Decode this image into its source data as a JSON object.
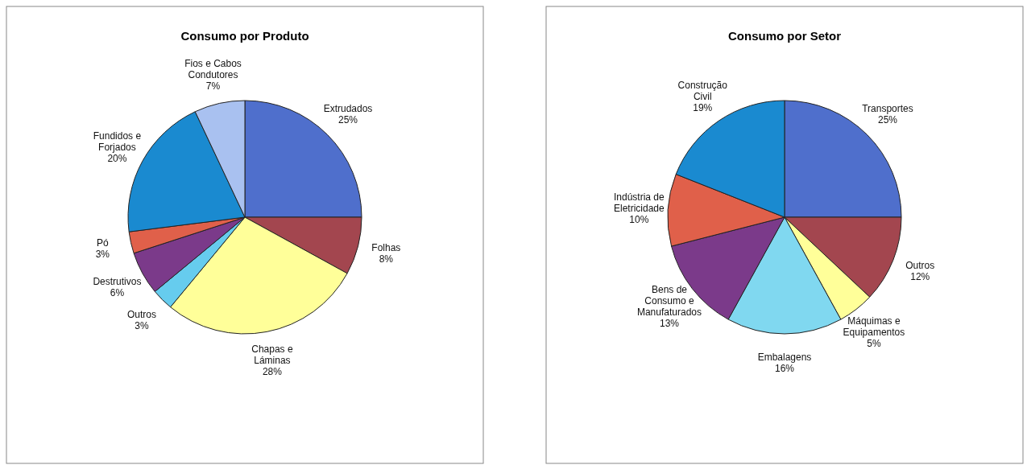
{
  "chart_data": [
    {
      "type": "pie",
      "title": "Consumo por Produto",
      "categories": [
        "Extrudados",
        "Folhas",
        "Chapas e Láminas",
        "Outros",
        "Destrutivos",
        "Pó",
        "Fundidos e Forjados",
        "Fios e Cabos Condutores"
      ],
      "values": [
        25,
        8,
        28,
        3,
        6,
        3,
        20,
        7
      ],
      "colors": [
        "#4f6fcc",
        "#a3464f",
        "#ffff99",
        "#66ccee",
        "#7b3a8a",
        "#e0604a",
        "#1a8ad0",
        "#a9c1f0"
      ],
      "value_labels": [
        "25%",
        "8%",
        "28%",
        "3%",
        "6%",
        "3%",
        "20%",
        "7%"
      ],
      "legend": false
    },
    {
      "type": "pie",
      "title": "Consumo por Setor",
      "categories": [
        "Transportes",
        "Outros",
        "Máquimas e Equipamentos",
        "Embalagens",
        "Bens de Consumo e Manufaturados",
        "Indústria de Eletricidade",
        "Construção Civil"
      ],
      "values": [
        25,
        12,
        5,
        16,
        13,
        10,
        19
      ],
      "colors": [
        "#4f6fcc",
        "#a3464f",
        "#ffff99",
        "#80d8f0",
        "#7b3a8a",
        "#e0604a",
        "#1a8ad0"
      ],
      "value_labels": [
        "25%",
        "12%",
        "5%",
        "16%",
        "13%",
        "10%",
        "19%"
      ],
      "legend": false
    }
  ]
}
